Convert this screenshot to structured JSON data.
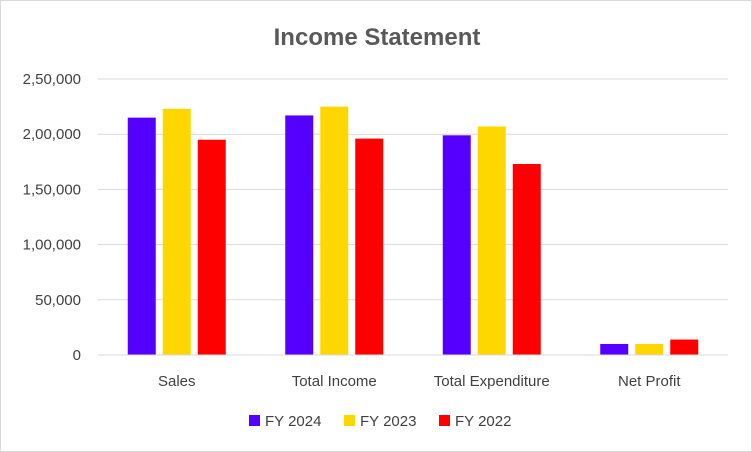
{
  "chart_data": {
    "type": "bar",
    "title": "Income Statement",
    "xlabel": "",
    "ylabel": "",
    "categories": [
      "Sales",
      "Total Income",
      "Total Expenditure",
      "Net Profit"
    ],
    "series": [
      {
        "name": "FY 2024",
        "color": "#5500ff",
        "values": [
          215000,
          217000,
          199000,
          10000
        ]
      },
      {
        "name": "FY 2023",
        "color": "#ffd700",
        "values": [
          223000,
          225000,
          207000,
          10000
        ]
      },
      {
        "name": "FY 2022",
        "color": "#ff0000",
        "values": [
          195000,
          196000,
          173000,
          14000
        ]
      }
    ],
    "ylim": [
      0,
      250000
    ],
    "yticks": [
      0,
      50000,
      100000,
      150000,
      200000,
      250000
    ],
    "ytick_labels": [
      "0",
      "50,000",
      "1,00,000",
      "1,50,000",
      "2,00,000",
      "2,50,000"
    ],
    "grid": "horizontal",
    "legend_position": "bottom"
  }
}
